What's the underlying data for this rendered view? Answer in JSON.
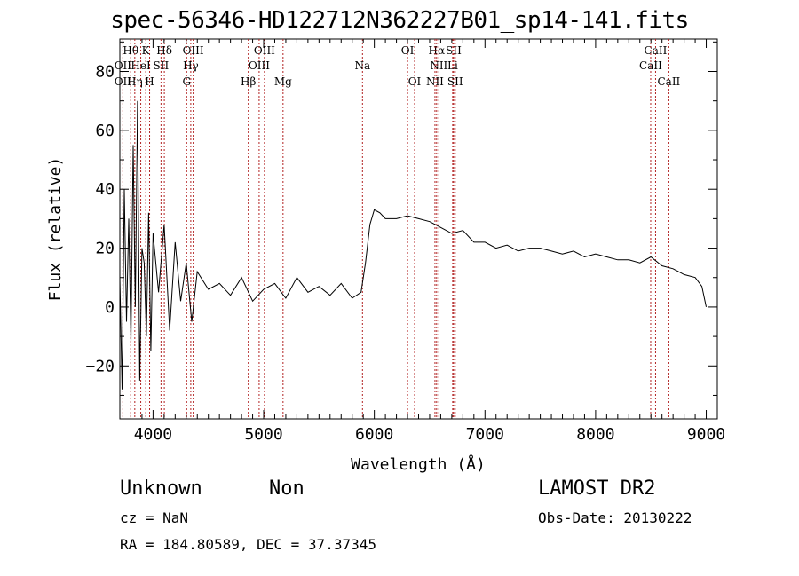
{
  "chart_data": {
    "type": "line",
    "title": "spec-56346-HD122712N362227B01_sp14-141.fits",
    "xlabel": "Wavelength (Å)",
    "ylabel": "Flux (relative)",
    "xlim": [
      3700,
      9100
    ],
    "ylim": [
      -38,
      91
    ],
    "xticks": [
      4000,
      5000,
      6000,
      7000,
      8000,
      9000
    ],
    "yticks": [
      -20,
      0,
      20,
      40,
      60,
      80
    ],
    "grid": false,
    "series": [
      {
        "x": [
          3700,
          3720,
          3740,
          3760,
          3780,
          3800,
          3820,
          3840,
          3860,
          3880,
          3900,
          3920,
          3940,
          3960,
          3980,
          4000,
          4050,
          4100,
          4150,
          4200,
          4250,
          4300,
          4350,
          4400,
          4500,
          4600,
          4700,
          4800,
          4900,
          5000,
          5100,
          5200,
          5300,
          5400,
          5500,
          5600,
          5700,
          5800,
          5880,
          5920,
          5960,
          6000,
          6050,
          6100,
          6200,
          6300,
          6400,
          6500,
          6600,
          6700,
          6800,
          6900,
          7000,
          7100,
          7200,
          7300,
          7400,
          7500,
          7600,
          7700,
          7800,
          7900,
          8000,
          8100,
          8200,
          8300,
          8400,
          8500,
          8600,
          8700,
          8800,
          8900,
          8960,
          9000
        ],
        "y": [
          10,
          -28,
          40,
          -5,
          30,
          -12,
          55,
          0,
          70,
          -25,
          20,
          15,
          -10,
          32,
          -15,
          25,
          5,
          28,
          -8,
          22,
          2,
          15,
          -5,
          12,
          6,
          8,
          4,
          10,
          2,
          6,
          8,
          3,
          10,
          5,
          7,
          4,
          8,
          3,
          5,
          15,
          28,
          33,
          32,
          30,
          30,
          31,
          30,
          29,
          27,
          25,
          26,
          22,
          22,
          20,
          21,
          19,
          20,
          20,
          19,
          18,
          19,
          17,
          18,
          17,
          16,
          16,
          15,
          17,
          14,
          13,
          11,
          10,
          7,
          0
        ]
      }
    ],
    "line_markers": {
      "top": [
        {
          "label": "Hθ",
          "x": 3798
        },
        {
          "label": "K",
          "x": 3934
        },
        {
          "label": "Hδ",
          "x": 4102
        },
        {
          "label": "OIII",
          "x": 4363
        },
        {
          "label": "OIII",
          "x": 5007
        },
        {
          "label": "OI",
          "x": 6300
        },
        {
          "label": "Hα",
          "x": 6563
        },
        {
          "label": "SII",
          "x": 6717
        },
        {
          "label": "CaII",
          "x": 8542
        }
      ],
      "mid": [
        {
          "label": "OII",
          "x": 3727
        },
        {
          "label": "HeI",
          "x": 3889
        },
        {
          "label": "SII",
          "x": 4072
        },
        {
          "label": "Hγ",
          "x": 4341
        },
        {
          "label": "OIII",
          "x": 4959
        },
        {
          "label": "Na",
          "x": 5893
        },
        {
          "label": "NII",
          "x": 6583
        },
        {
          "label": "Li",
          "x": 6708
        },
        {
          "label": "CaII",
          "x": 8498
        }
      ],
      "low": [
        {
          "label": "OII",
          "x": 3727
        },
        {
          "label": "Hη",
          "x": 3835
        },
        {
          "label": "H",
          "x": 3969
        },
        {
          "label": "G",
          "x": 4304
        },
        {
          "label": "Hβ",
          "x": 4861
        },
        {
          "label": "Mg",
          "x": 5175
        },
        {
          "label": "OI",
          "x": 6364
        },
        {
          "label": "NII",
          "x": 6548
        },
        {
          "label": "SII",
          "x": 6731
        },
        {
          "label": "CaII",
          "x": 8662
        }
      ]
    }
  },
  "info": {
    "class_label": "Unknown",
    "subclass_label": "Non",
    "survey": "LAMOST DR2",
    "cz": "cz = NaN",
    "obs_date": "Obs-Date: 20130222",
    "coords": "RA = 184.80589, DEC =  37.37345"
  }
}
